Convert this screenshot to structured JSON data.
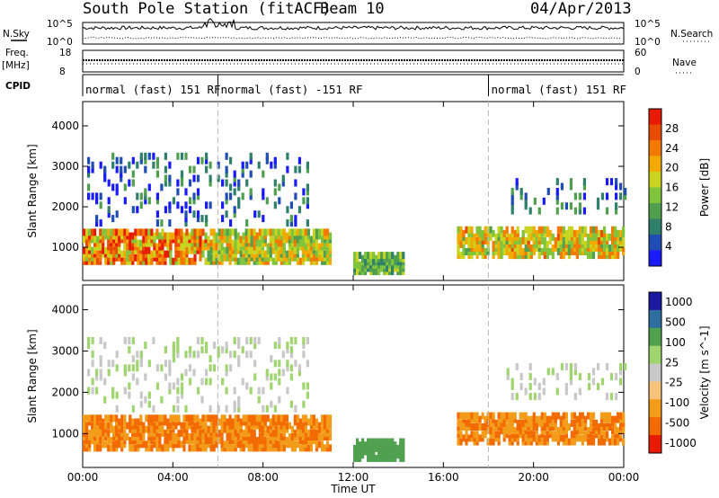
{
  "header": {
    "station": "South Pole Station (fitACF)",
    "beam": "Beam 10",
    "date": "04/Apr/2013"
  },
  "side_labels": {
    "nsky": "N.Sky",
    "nsearch": "N.Search",
    "freq_top": "Freq.",
    "freq_unit": "[MHz]",
    "nave": "Nave",
    "cpid": "CPID",
    "nsky_hi": "10^5",
    "nsky_lo": "10^0",
    "nsearch_hi": "10^5",
    "nsearch_lo": "10^0",
    "freq_hi": "18",
    "freq_lo": "8",
    "nave_hi": "60",
    "nave_lo": "0"
  },
  "modes": [
    {
      "label": "normal (fast) 151 RF",
      "start_hour": 0
    },
    {
      "label": "normal (fast) -151 RF",
      "start_hour": 6
    },
    {
      "label": "normal (fast) 151 RF",
      "start_hour": 18
    }
  ],
  "colors": {
    "power_scale": [
      "#1a1aff",
      "#1f4db3",
      "#2f7f6b",
      "#4f9f4f",
      "#7fc43a",
      "#c8d41f",
      "#f2a900",
      "#f27a00",
      "#e84b00",
      "#e81b00"
    ],
    "velocity_scale": [
      "#e81b00",
      "#f26a00",
      "#f29c1a",
      "#f7c27a",
      "#c8c8c8",
      "#9fd46f",
      "#4fa04f",
      "#2f6fa0",
      "#1a1aa0"
    ]
  },
  "chart_data": [
    {
      "type": "heatmap",
      "name": "power",
      "xlabel": "Time UT",
      "ylabel": "Slant Range [km]",
      "colorbar_label": "Power [dB]",
      "colorbar_ticks": [
        "4",
        "8",
        "12",
        "16",
        "20",
        "24",
        "28"
      ],
      "x_ticks": [
        "00:00",
        "04:00",
        "08:00",
        "12:00",
        "16:00",
        "20:00",
        "00:00"
      ],
      "y_ticks": [
        "1000",
        "2000",
        "3000",
        "4000"
      ],
      "xlim": [
        0,
        24
      ],
      "ylim": [
        180,
        4600
      ],
      "mode_change_hours": [
        6,
        18
      ]
    },
    {
      "type": "heatmap",
      "name": "velocity",
      "xlabel": "Time UT",
      "ylabel": "Slant Range [km]",
      "colorbar_label": "Velocity [m s^-1]",
      "colorbar_ticks": [
        "1000",
        "500",
        "100",
        "25",
        "-25",
        "-100",
        "-500",
        "-1000"
      ],
      "x_ticks": [
        "00:00",
        "04:00",
        "08:00",
        "12:00",
        "16:00",
        "20:00",
        "00:00"
      ],
      "y_ticks": [
        "1000",
        "2000",
        "3000",
        "4000"
      ],
      "xlim": [
        0,
        24
      ],
      "ylim": [
        180,
        4600
      ],
      "mode_change_hours": [
        6,
        18
      ]
    }
  ]
}
